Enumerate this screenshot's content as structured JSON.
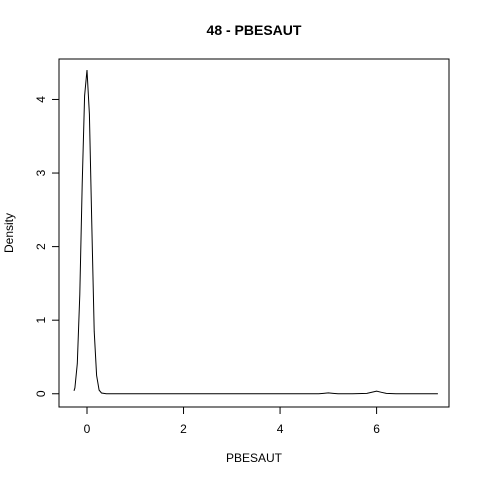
{
  "chart_data": {
    "type": "line",
    "title": "48 - PBESAUT",
    "xlabel": "PBESAUT",
    "ylabel": "Density",
    "xlim": [
      -0.58,
      7.5
    ],
    "ylim": [
      -0.18,
      4.55
    ],
    "x_ticks": [
      0,
      2,
      4,
      6
    ],
    "y_ticks": [
      0,
      1,
      2,
      3,
      4
    ],
    "x_tick_labels": [
      "0",
      "2",
      "4",
      "6"
    ],
    "y_tick_labels": [
      "0",
      "1",
      "2",
      "3",
      "4"
    ],
    "grid": false,
    "legend": "none",
    "series": [
      {
        "x": [
          -0.27,
          -0.25,
          -0.2,
          -0.15,
          -0.1,
          -0.05,
          0,
          0.05,
          0.1,
          0.15,
          0.2,
          0.25,
          0.3,
          0.4,
          1,
          2,
          3,
          4,
          4.8,
          4.9,
          5.0,
          5.1,
          5.2,
          5.5,
          5.8,
          5.9,
          6.0,
          6.1,
          6.2,
          6.4,
          7,
          7.27
        ],
        "y": [
          0.04,
          0.08,
          0.41,
          1.35,
          2.85,
          4.05,
          4.4,
          3.8,
          2.3,
          0.85,
          0.25,
          0.05,
          0.01,
          0.0,
          0.0,
          0.0,
          0.0,
          0.0,
          0.0,
          0.005,
          0.012,
          0.005,
          0.0,
          0.0,
          0.005,
          0.02,
          0.035,
          0.02,
          0.005,
          0.0,
          0.0,
          0.0
        ],
        "color": "#000000"
      }
    ]
  }
}
